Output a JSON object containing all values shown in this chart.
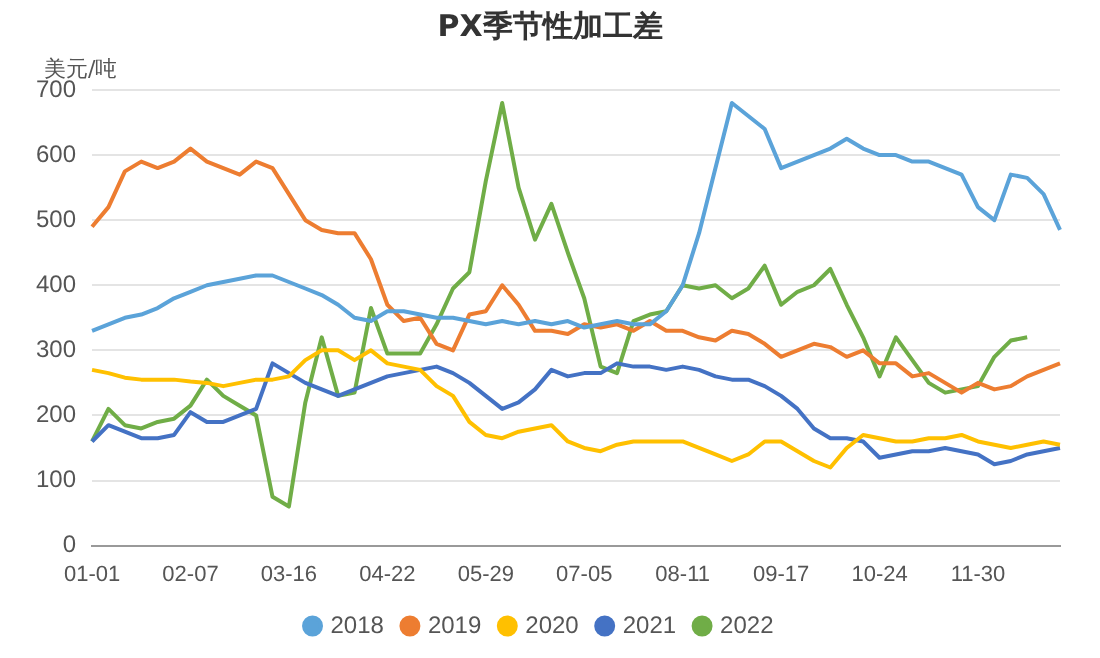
{
  "chart_data": {
    "type": "line",
    "title": "PX季节性加工差",
    "ylabel": "美元/吨",
    "categories": [
      "01-01",
      null,
      null,
      null,
      null,
      null,
      "02-07",
      null,
      null,
      null,
      null,
      null,
      "03-16",
      null,
      null,
      null,
      null,
      null,
      "04-22",
      null,
      null,
      null,
      null,
      null,
      "05-29",
      null,
      null,
      null,
      null,
      null,
      "07-05",
      null,
      null,
      null,
      null,
      null,
      "08-11",
      null,
      null,
      null,
      null,
      null,
      "09-17",
      null,
      null,
      null,
      null,
      null,
      "10-24",
      null,
      null,
      null,
      null,
      null,
      "11-30",
      null,
      null,
      null,
      null,
      null
    ],
    "series": [
      {
        "name": "2018",
        "color": "#5ba3d9",
        "values": [
          330,
          340,
          350,
          355,
          365,
          380,
          390,
          400,
          405,
          410,
          415,
          415,
          405,
          395,
          385,
          370,
          350,
          345,
          360,
          360,
          355,
          350,
          350,
          345,
          340,
          345,
          340,
          345,
          340,
          345,
          335,
          340,
          345,
          340,
          340,
          360,
          400,
          480,
          580,
          680,
          660,
          640,
          580,
          590,
          600,
          610,
          625,
          610,
          600,
          600,
          590,
          590,
          580,
          570,
          520,
          500,
          570,
          565,
          540,
          485
        ]
      },
      {
        "name": "2019",
        "color": "#ed7d31",
        "values": [
          490,
          520,
          575,
          590,
          580,
          590,
          610,
          590,
          580,
          570,
          590,
          580,
          540,
          500,
          485,
          480,
          480,
          440,
          370,
          345,
          350,
          310,
          300,
          355,
          360,
          400,
          370,
          330,
          330,
          325,
          340,
          335,
          340,
          330,
          345,
          330,
          330,
          320,
          315,
          330,
          325,
          310,
          290,
          300,
          310,
          305,
          290,
          300,
          280,
          280,
          260,
          265,
          250,
          235,
          250,
          240,
          245,
          260,
          270,
          280
        ]
      },
      {
        "name": "2020",
        "color": "#ffc000",
        "values": [
          270,
          265,
          258,
          255,
          255,
          255,
          252,
          250,
          245,
          250,
          255,
          255,
          260,
          285,
          300,
          300,
          285,
          300,
          280,
          275,
          270,
          245,
          230,
          190,
          170,
          165,
          175,
          180,
          185,
          160,
          150,
          145,
          155,
          160,
          160,
          160,
          160,
          150,
          140,
          130,
          140,
          160,
          160,
          145,
          130,
          120,
          150,
          170,
          165,
          160,
          160,
          165,
          165,
          170,
          160,
          155,
          150,
          155,
          160,
          155
        ]
      },
      {
        "name": "2021",
        "color": "#4472c4",
        "values": [
          160,
          185,
          175,
          165,
          165,
          170,
          205,
          190,
          190,
          200,
          210,
          280,
          265,
          250,
          240,
          230,
          240,
          250,
          260,
          265,
          270,
          275,
          265,
          250,
          230,
          210,
          220,
          240,
          270,
          260,
          265,
          265,
          280,
          275,
          275,
          270,
          275,
          270,
          260,
          255,
          255,
          245,
          230,
          210,
          180,
          165,
          165,
          160,
          135,
          140,
          145,
          145,
          150,
          145,
          140,
          125,
          130,
          140,
          145,
          150
        ]
      },
      {
        "name": "2022",
        "color": "#70ad47",
        "values": [
          160,
          210,
          185,
          180,
          190,
          195,
          215,
          255,
          230,
          215,
          200,
          75,
          60,
          220,
          320,
          230,
          235,
          365,
          295,
          295,
          295,
          340,
          395,
          420,
          560,
          680,
          550,
          470,
          525,
          450,
          380,
          275,
          265,
          345,
          355,
          360,
          400,
          395,
          400,
          380,
          395,
          430,
          370,
          390,
          400,
          425,
          370,
          320,
          260,
          320,
          285,
          250,
          235,
          240,
          245,
          290,
          315,
          320,
          null,
          null
        ]
      }
    ],
    "ylim": [
      0,
      700
    ],
    "yticks": [
      0,
      100,
      200,
      300,
      400,
      500,
      600,
      700
    ],
    "grid": "y",
    "legend": "bottom",
    "marker": "none",
    "line_style": "solid"
  }
}
